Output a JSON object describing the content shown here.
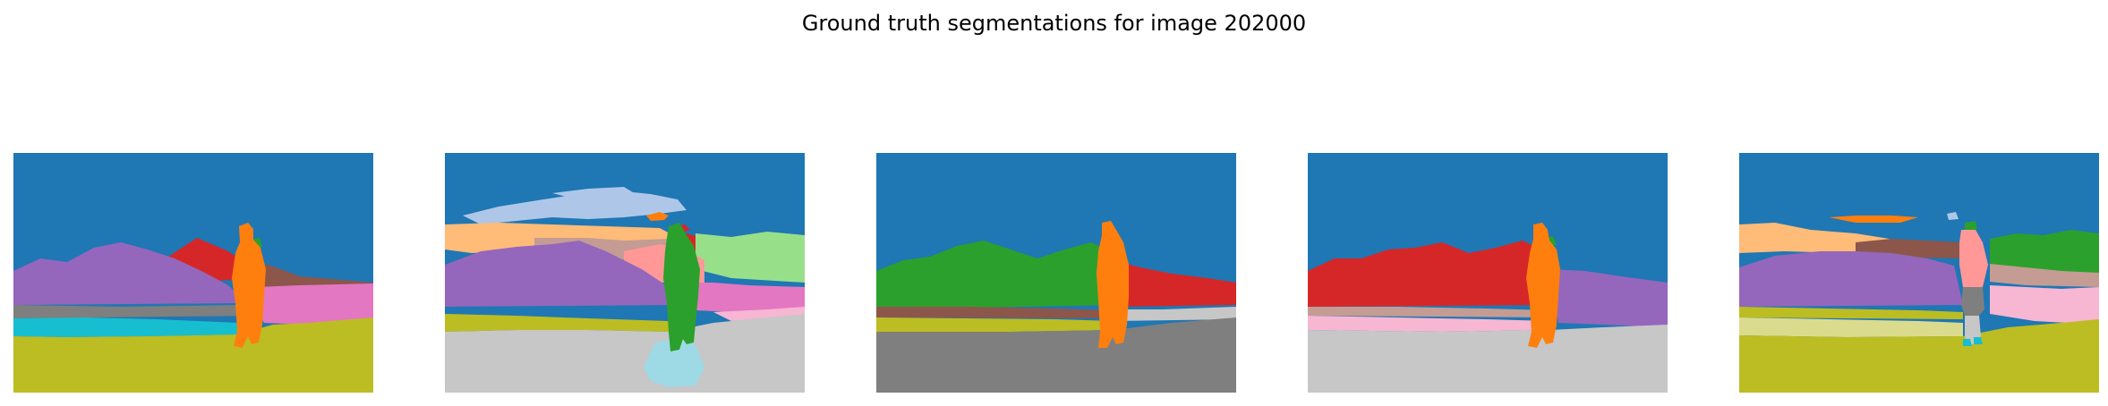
{
  "figure": {
    "title": "Ground truth segmentations for image 202000"
  },
  "palette": {
    "blue": "#1f77b4",
    "light_blue": "#aec7e8",
    "orange": "#ff7f0e",
    "light_orange": "#ffbb78",
    "green": "#2ca02c",
    "light_green": "#98df8a",
    "red": "#d62728",
    "pink_salmon": "#ff9896",
    "purple": "#9467bd",
    "brown": "#8c564b",
    "tan": "#c49c94",
    "pink": "#e377c2",
    "light_pink": "#f7b6d2",
    "gray": "#7f7f7f",
    "light_gray": "#c7c7c7",
    "olive": "#bcbd22",
    "light_olive": "#dbdb8d",
    "cyan": "#17becf",
    "light_cyan": "#9edae5"
  },
  "panels": [
    {
      "name": "segmentation-1",
      "segment_count": 9
    },
    {
      "name": "segmentation-2",
      "segment_count": 14
    },
    {
      "name": "segmentation-3",
      "segment_count": 8
    },
    {
      "name": "segmentation-4",
      "segment_count": 9
    },
    {
      "name": "segmentation-5",
      "segment_count": 15
    }
  ]
}
